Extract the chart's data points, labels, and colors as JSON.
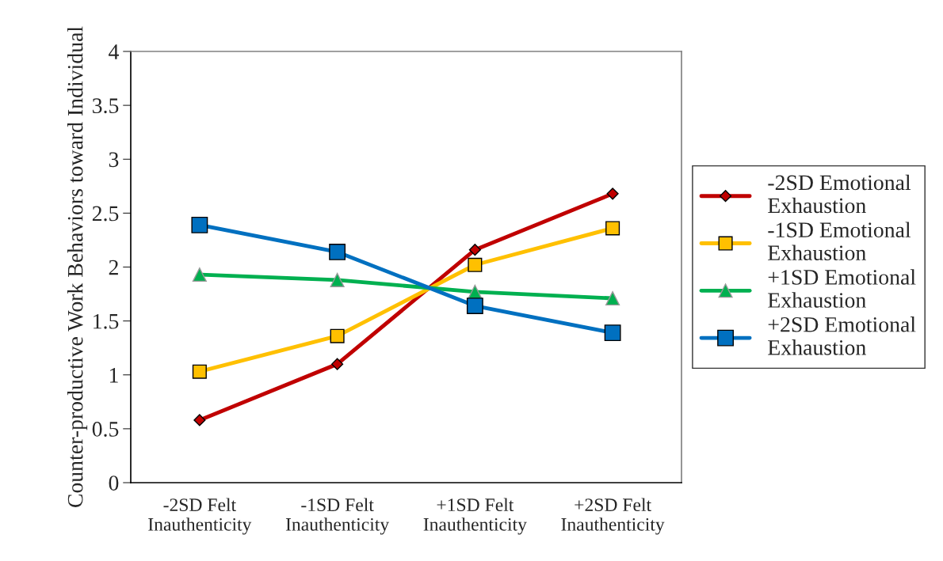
{
  "chart_data": {
    "type": "line",
    "ylabel": "Counter-productive Work Behaviors toward Individual",
    "categories": [
      "-2SD Felt Inauthenticity",
      "-1SD Felt Inauthenticity",
      "+1SD Felt Inauthenticity",
      "+2SD Felt Inauthenticity"
    ],
    "series": [
      {
        "name": "-2SD Emotional Exhaustion",
        "color": "#c00000",
        "marker": "diamond",
        "values": [
          0.58,
          1.1,
          2.16,
          2.68
        ]
      },
      {
        "name": "-1SD Emotional Exhaustion",
        "color": "#ffc000",
        "marker": "square",
        "values": [
          1.03,
          1.36,
          2.02,
          2.36
        ]
      },
      {
        "name": "+1SD Emotional Exhaustion",
        "color": "#00b050",
        "marker": "triangle",
        "values": [
          1.93,
          1.88,
          1.77,
          1.71
        ]
      },
      {
        "name": "+2SD Emotional Exhaustion",
        "color": "#0070c0",
        "marker": "square",
        "values": [
          2.39,
          2.14,
          1.64,
          1.39
        ]
      }
    ],
    "ylim": [
      0,
      4
    ],
    "yticks": [
      0,
      0.5,
      1,
      1.5,
      2,
      2.5,
      3,
      3.5,
      4
    ],
    "grid": false,
    "legend": "right",
    "line_style": "solid"
  }
}
